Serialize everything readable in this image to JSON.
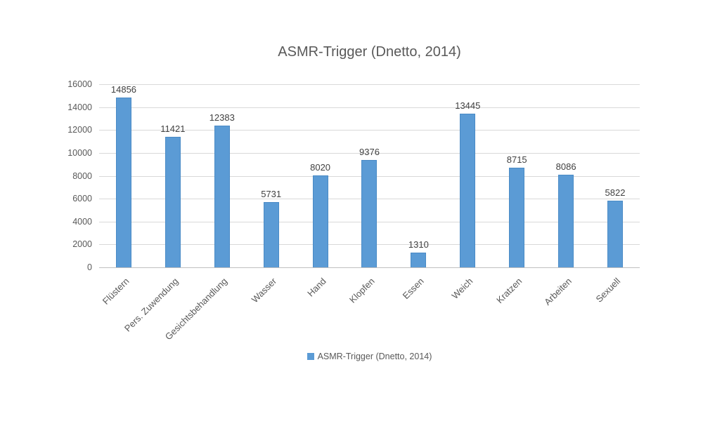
{
  "chart_data": {
    "type": "bar",
    "title": "ASMR-Trigger (Dnetto, 2014)",
    "categories": [
      "Flüstern",
      "Pers. Zuwendung",
      "Gesichtsbehandlung",
      "Wasser",
      "Hand",
      "Klopfen",
      "Essen",
      "Weich",
      "Kratzen",
      "Arbeiten",
      "Sexuell"
    ],
    "values": [
      14856,
      11421,
      12383,
      5731,
      8020,
      9376,
      1310,
      13445,
      8715,
      8086,
      5822
    ],
    "xlabel": "",
    "ylabel": "",
    "ylim": [
      0,
      16000
    ],
    "yticks": [
      0,
      2000,
      4000,
      6000,
      8000,
      10000,
      12000,
      14000,
      16000
    ],
    "grid": true,
    "legend": [
      "ASMR-Trigger (Dnetto, 2014)"
    ],
    "legend_position": "bottom",
    "colors": {
      "bar": "#5B9BD5",
      "bar_border": "#4A8BC6",
      "gridline": "#D9D9D9",
      "axis_line": "#BFBFBF",
      "text": "#595959",
      "value_label": "#404040"
    }
  }
}
